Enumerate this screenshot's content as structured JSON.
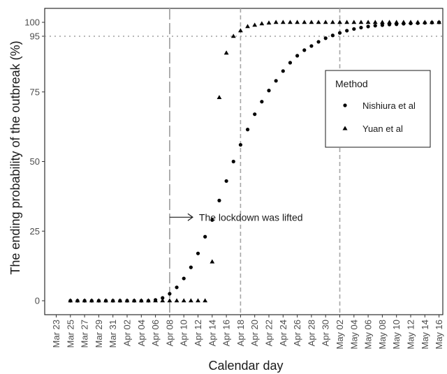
{
  "chart_data": {
    "type": "scatter",
    "title": "",
    "xlabel": "Calendar day",
    "ylabel": "The ending probability of the outbreak (%)",
    "ylim": [
      0,
      100
    ],
    "y_ticks": [
      0,
      25,
      50,
      75,
      95,
      100
    ],
    "x_tick_labels": [
      "Mar 23",
      "Mar 25",
      "Mar 27",
      "Mar 29",
      "Mar 31",
      "Apr 02",
      "Apr 04",
      "Apr 06",
      "Apr 08",
      "Apr 10",
      "Apr 12",
      "Apr 14",
      "Apr 16",
      "Apr 18",
      "Apr 20",
      "Apr 22",
      "Apr 24",
      "Apr 26",
      "Apr 28",
      "Apr 30",
      "May 02",
      "May 04",
      "May 06",
      "May 08",
      "May 10",
      "May 12",
      "May 14",
      "May 16"
    ],
    "x_start_date": "Mar 23",
    "grid": false,
    "reference_lines": {
      "horizontal_dotted": [
        95
      ],
      "vertical_longdash": [
        "Apr 08"
      ],
      "vertical_dashed": [
        "Apr 18",
        "May 02"
      ]
    },
    "annotation": {
      "text": "The lockdown was lifted",
      "x": "Apr 08",
      "y": 30
    },
    "legend": {
      "title": "Method",
      "position": "right",
      "entries": [
        "Nishiura et al",
        "Yuan et al"
      ]
    },
    "series": [
      {
        "name": "Nishiura et al",
        "marker": "circle",
        "x_dates": [
          "Mar 25",
          "Mar 26",
          "Mar 27",
          "Mar 28",
          "Mar 29",
          "Mar 30",
          "Mar 31",
          "Apr 01",
          "Apr 02",
          "Apr 03",
          "Apr 04",
          "Apr 05",
          "Apr 06",
          "Apr 07",
          "Apr 08",
          "Apr 09",
          "Apr 10",
          "Apr 11",
          "Apr 12",
          "Apr 13",
          "Apr 14",
          "Apr 15",
          "Apr 16",
          "Apr 17",
          "Apr 18",
          "Apr 19",
          "Apr 20",
          "Apr 21",
          "Apr 22",
          "Apr 23",
          "Apr 24",
          "Apr 25",
          "Apr 26",
          "Apr 27",
          "Apr 28",
          "Apr 29",
          "Apr 30",
          "May 01",
          "May 02",
          "May 03",
          "May 04",
          "May 05",
          "May 06",
          "May 07",
          "May 08",
          "May 09",
          "May 10",
          "May 11",
          "May 12",
          "May 13",
          "May 14",
          "May 15",
          "May 16"
        ],
        "values": [
          0,
          0,
          0,
          0,
          0,
          0,
          0,
          0,
          0,
          0,
          0,
          0,
          0.3,
          1,
          2.5,
          4.8,
          8,
          12,
          17,
          23,
          29,
          36,
          43,
          50,
          56,
          61.5,
          67,
          71.5,
          75.5,
          79,
          82.5,
          85.5,
          88,
          90,
          91.5,
          93,
          94.3,
          95.3,
          96.2,
          97,
          97.6,
          98.1,
          98.5,
          98.8,
          99,
          99.2,
          99.3,
          99.5,
          99.6,
          99.7,
          99.8,
          99.9,
          100
        ]
      },
      {
        "name": "Yuan et al",
        "marker": "triangle",
        "x_dates": [
          "Mar 25",
          "Mar 26",
          "Mar 27",
          "Mar 28",
          "Mar 29",
          "Mar 30",
          "Mar 31",
          "Apr 01",
          "Apr 02",
          "Apr 03",
          "Apr 04",
          "Apr 05",
          "Apr 06",
          "Apr 07",
          "Apr 08",
          "Apr 09",
          "Apr 10",
          "Apr 11",
          "Apr 12",
          "Apr 13",
          "Apr 14",
          "Apr 15",
          "Apr 16",
          "Apr 17",
          "Apr 18",
          "Apr 19",
          "Apr 20",
          "Apr 21",
          "Apr 22",
          "Apr 23",
          "Apr 24",
          "Apr 25",
          "Apr 26",
          "Apr 27",
          "Apr 28",
          "Apr 29",
          "Apr 30",
          "May 01",
          "May 02",
          "May 03",
          "May 04",
          "May 05",
          "May 06",
          "May 07",
          "May 08",
          "May 09",
          "May 10",
          "May 11",
          "May 12",
          "May 13",
          "May 14",
          "May 15",
          "May 16"
        ],
        "values": [
          0,
          0,
          0,
          0,
          0,
          0,
          0,
          0,
          0,
          0,
          0,
          0,
          0,
          0,
          0,
          0,
          0,
          0,
          0,
          0,
          14,
          73,
          89,
          95,
          97,
          98.5,
          99,
          99.5,
          99.8,
          100,
          100,
          100,
          100,
          100,
          100,
          100,
          100,
          100,
          100,
          100,
          100,
          100,
          100,
          100,
          100,
          100,
          100,
          100,
          100,
          100,
          100,
          100,
          100
        ]
      }
    ]
  }
}
